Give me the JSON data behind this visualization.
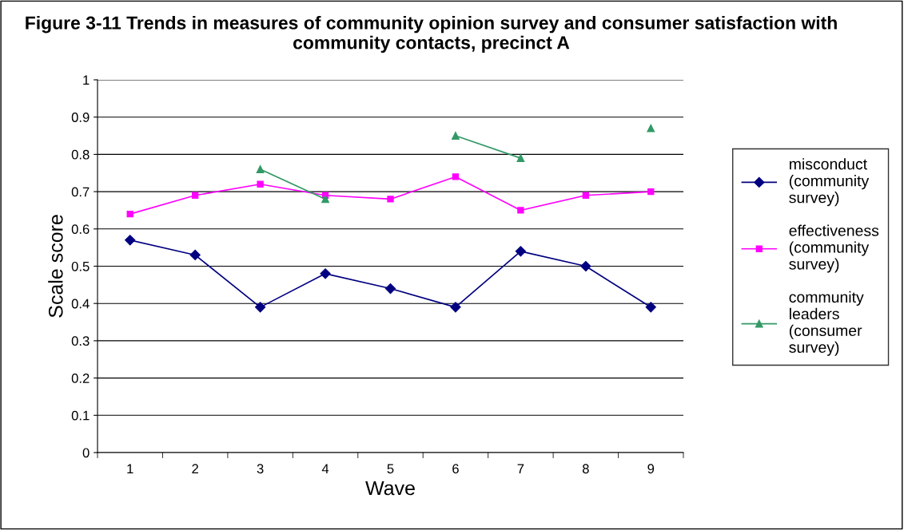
{
  "chart_data": {
    "type": "line",
    "title": "Figure 3-11 Trends in measures of community opinion survey and consumer satisfaction with community contacts, precinct A",
    "xlabel": "Wave",
    "ylabel": "Scale score",
    "categories": [
      "1",
      "2",
      "3",
      "4",
      "5",
      "6",
      "7",
      "8",
      "9"
    ],
    "series": [
      {
        "name": "misconduct (community survey)",
        "color": "#000080",
        "marker": "diamond",
        "values": [
          0.57,
          0.53,
          0.39,
          0.48,
          0.44,
          0.39,
          0.54,
          0.5,
          0.39
        ]
      },
      {
        "name": "effectiveness (community survey)",
        "color": "#ff00ff",
        "marker": "square",
        "values": [
          0.64,
          0.69,
          0.72,
          0.69,
          0.68,
          0.74,
          0.65,
          0.69,
          0.7
        ]
      },
      {
        "name": "community leaders (consumer survey)",
        "color": "#339966",
        "marker": "triangle",
        "values": [
          null,
          null,
          0.76,
          0.68,
          null,
          0.85,
          0.79,
          null,
          0.87
        ]
      }
    ],
    "ylim": [
      0,
      1
    ],
    "yticks": [
      0,
      0.1,
      0.2,
      0.3,
      0.4,
      0.5,
      0.6,
      0.7,
      0.8,
      0.9,
      1
    ],
    "grid": "y",
    "legend": "right",
    "line_style": "solid"
  }
}
